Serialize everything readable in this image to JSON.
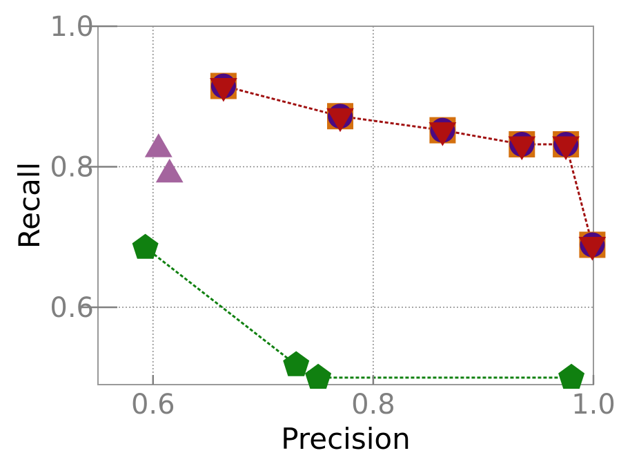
{
  "chart_data": {
    "type": "scatter",
    "title": "",
    "xlabel": "Precision",
    "ylabel": "Recall",
    "xlim": [
      0.55,
      1.0
    ],
    "ylim": [
      0.49,
      1.0
    ],
    "xticks": [
      0.6,
      0.8,
      1.0
    ],
    "xtick_labels": [
      "0.6",
      "0.8",
      "1.0"
    ],
    "yticks": [
      0.6,
      0.8,
      1.0
    ],
    "ytick_labels": [
      "0.6",
      "0.8",
      "1.0"
    ],
    "grid": true,
    "series": [
      {
        "marker": "square",
        "color": "#d4700f",
        "line": false,
        "points": [
          [
            0.664,
            0.915
          ],
          [
            0.77,
            0.872
          ],
          [
            0.863,
            0.852
          ],
          [
            0.935,
            0.832
          ],
          [
            0.975,
            0.832
          ],
          [
            0.999,
            0.689
          ]
        ]
      },
      {
        "marker": "circle",
        "color": "#4b0a82",
        "line": false,
        "points": [
          [
            0.664,
            0.915
          ],
          [
            0.77,
            0.872
          ],
          [
            0.863,
            0.852
          ],
          [
            0.935,
            0.832
          ],
          [
            0.975,
            0.832
          ],
          [
            0.999,
            0.689
          ]
        ]
      },
      {
        "marker": "triangle-down",
        "color": "#b01010",
        "line": true,
        "line_color": "#a01010",
        "points": [
          [
            0.664,
            0.915
          ],
          [
            0.77,
            0.872
          ],
          [
            0.863,
            0.852
          ],
          [
            0.935,
            0.832
          ],
          [
            0.975,
            0.832
          ],
          [
            0.999,
            0.689
          ]
        ]
      },
      {
        "marker": "triangle-up",
        "color": "#a4649e",
        "line": false,
        "points": [
          [
            0.605,
            0.825
          ],
          [
            0.615,
            0.789
          ]
        ]
      },
      {
        "marker": "pentagon",
        "color": "#108010",
        "line": true,
        "line_color": "#108010",
        "points": [
          [
            0.593,
            0.685
          ],
          [
            0.73,
            0.518
          ],
          [
            0.75,
            0.5
          ],
          [
            0.98,
            0.5
          ]
        ]
      }
    ]
  }
}
